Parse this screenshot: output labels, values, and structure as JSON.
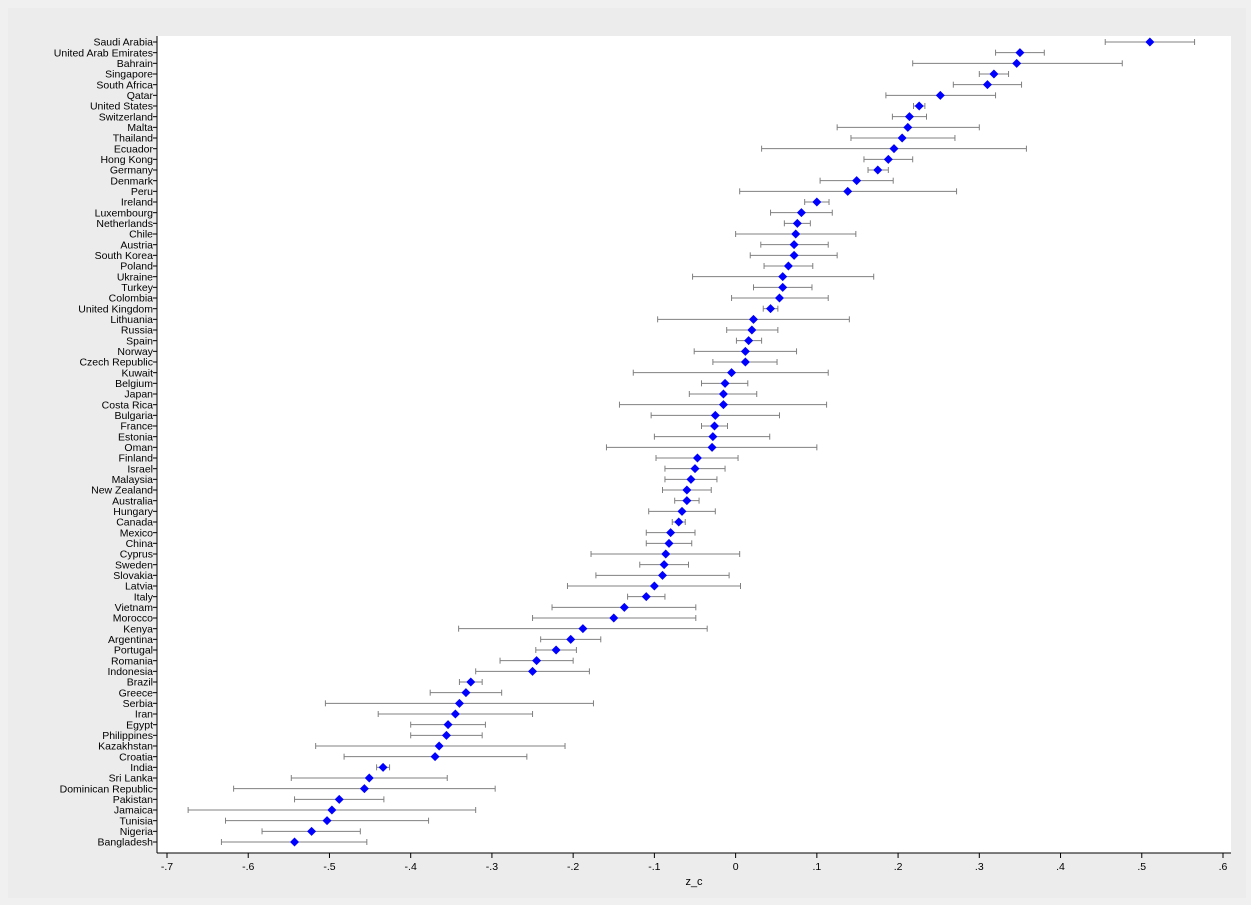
{
  "chart_data": {
    "type": "scatter",
    "subtype": "dot-plot-with-error-bars",
    "xlabel": "z_c",
    "ylabel": "",
    "xlim": [
      -0.7,
      0.6
    ],
    "x_ticks": [
      -0.7,
      -0.6,
      -0.5,
      -0.4,
      -0.3,
      -0.2,
      -0.1,
      0,
      0.1,
      0.2,
      0.3,
      0.4,
      0.5,
      0.6
    ],
    "x_tick_labels": [
      "-.7",
      "-.6",
      "-.5",
      "-.4",
      "-.3",
      "-.2",
      "-.1",
      "0",
      ".1",
      ".2",
      ".3",
      ".4",
      ".5",
      ".6"
    ],
    "grid": false,
    "marker_color": "#0000ff",
    "errorbar_color": "#808080",
    "points": [
      {
        "country": "Saudi Arabia",
        "estimate": 0.51,
        "lower": 0.455,
        "upper": 0.565
      },
      {
        "country": "United Arab Emirates",
        "estimate": 0.35,
        "lower": 0.32,
        "upper": 0.38
      },
      {
        "country": "Bahrain",
        "estimate": 0.346,
        "lower": 0.218,
        "upper": 0.476
      },
      {
        "country": "Singapore",
        "estimate": 0.318,
        "lower": 0.3,
        "upper": 0.336
      },
      {
        "country": "South Africa",
        "estimate": 0.31,
        "lower": 0.268,
        "upper": 0.352
      },
      {
        "country": "Qatar",
        "estimate": 0.252,
        "lower": 0.185,
        "upper": 0.32
      },
      {
        "country": "United States",
        "estimate": 0.226,
        "lower": 0.219,
        "upper": 0.233
      },
      {
        "country": "Switzerland",
        "estimate": 0.214,
        "lower": 0.193,
        "upper": 0.235
      },
      {
        "country": "Malta",
        "estimate": 0.212,
        "lower": 0.125,
        "upper": 0.3
      },
      {
        "country": "Thailand",
        "estimate": 0.205,
        "lower": 0.142,
        "upper": 0.27
      },
      {
        "country": "Ecuador",
        "estimate": 0.195,
        "lower": 0.032,
        "upper": 0.358
      },
      {
        "country": "Hong Kong",
        "estimate": 0.188,
        "lower": 0.158,
        "upper": 0.218
      },
      {
        "country": "Germany",
        "estimate": 0.175,
        "lower": 0.163,
        "upper": 0.188
      },
      {
        "country": "Denmark",
        "estimate": 0.149,
        "lower": 0.104,
        "upper": 0.194
      },
      {
        "country": "Peru",
        "estimate": 0.138,
        "lower": 0.005,
        "upper": 0.272
      },
      {
        "country": "Ireland",
        "estimate": 0.1,
        "lower": 0.085,
        "upper": 0.115
      },
      {
        "country": "Luxembourg",
        "estimate": 0.081,
        "lower": 0.043,
        "upper": 0.119
      },
      {
        "country": "Netherlands",
        "estimate": 0.076,
        "lower": 0.06,
        "upper": 0.092
      },
      {
        "country": "Chile",
        "estimate": 0.074,
        "lower": 0.0,
        "upper": 0.148
      },
      {
        "country": "Austria",
        "estimate": 0.072,
        "lower": 0.031,
        "upper": 0.114
      },
      {
        "country": "South Korea",
        "estimate": 0.072,
        "lower": 0.018,
        "upper": 0.125
      },
      {
        "country": "Poland",
        "estimate": 0.065,
        "lower": 0.035,
        "upper": 0.095
      },
      {
        "country": "Ukraine",
        "estimate": 0.058,
        "lower": -0.053,
        "upper": 0.17
      },
      {
        "country": "Turkey",
        "estimate": 0.058,
        "lower": 0.022,
        "upper": 0.094
      },
      {
        "country": "Colombia",
        "estimate": 0.054,
        "lower": -0.005,
        "upper": 0.114
      },
      {
        "country": "United Kingdom",
        "estimate": 0.043,
        "lower": 0.034,
        "upper": 0.052
      },
      {
        "country": "Lithuania",
        "estimate": 0.022,
        "lower": -0.096,
        "upper": 0.14
      },
      {
        "country": "Russia",
        "estimate": 0.02,
        "lower": -0.011,
        "upper": 0.052
      },
      {
        "country": "Spain",
        "estimate": 0.016,
        "lower": 0.001,
        "upper": 0.032
      },
      {
        "country": "Norway",
        "estimate": 0.012,
        "lower": -0.051,
        "upper": 0.075
      },
      {
        "country": "Czech Republic",
        "estimate": 0.012,
        "lower": -0.028,
        "upper": 0.051
      },
      {
        "country": "Kuwait",
        "estimate": -0.005,
        "lower": -0.126,
        "upper": 0.114
      },
      {
        "country": "Belgium",
        "estimate": -0.013,
        "lower": -0.042,
        "upper": 0.015
      },
      {
        "country": "Japan",
        "estimate": -0.015,
        "lower": -0.057,
        "upper": 0.026
      },
      {
        "country": "Costa Rica",
        "estimate": -0.015,
        "lower": -0.143,
        "upper": 0.112
      },
      {
        "country": "Bulgaria",
        "estimate": -0.025,
        "lower": -0.104,
        "upper": 0.054
      },
      {
        "country": "France",
        "estimate": -0.026,
        "lower": -0.042,
        "upper": -0.01
      },
      {
        "country": "Estonia",
        "estimate": -0.028,
        "lower": -0.1,
        "upper": 0.042
      },
      {
        "country": "Oman",
        "estimate": -0.029,
        "lower": -0.159,
        "upper": 0.1
      },
      {
        "country": "Finland",
        "estimate": -0.047,
        "lower": -0.098,
        "upper": 0.003
      },
      {
        "country": "Israel",
        "estimate": -0.05,
        "lower": -0.087,
        "upper": -0.013
      },
      {
        "country": "Malaysia",
        "estimate": -0.055,
        "lower": -0.087,
        "upper": -0.023
      },
      {
        "country": "New Zealand",
        "estimate": -0.06,
        "lower": -0.09,
        "upper": -0.03
      },
      {
        "country": "Australia",
        "estimate": -0.06,
        "lower": -0.075,
        "upper": -0.045
      },
      {
        "country": "Hungary",
        "estimate": -0.066,
        "lower": -0.107,
        "upper": -0.025
      },
      {
        "country": "Canada",
        "estimate": -0.07,
        "lower": -0.078,
        "upper": -0.062
      },
      {
        "country": "Mexico",
        "estimate": -0.08,
        "lower": -0.11,
        "upper": -0.05
      },
      {
        "country": "China",
        "estimate": -0.082,
        "lower": -0.11,
        "upper": -0.054
      },
      {
        "country": "Cyprus",
        "estimate": -0.086,
        "lower": -0.178,
        "upper": 0.005
      },
      {
        "country": "Sweden",
        "estimate": -0.088,
        "lower": -0.118,
        "upper": -0.058
      },
      {
        "country": "Slovakia",
        "estimate": -0.09,
        "lower": -0.172,
        "upper": -0.008
      },
      {
        "country": "Latvia",
        "estimate": -0.1,
        "lower": -0.207,
        "upper": 0.006
      },
      {
        "country": "Italy",
        "estimate": -0.11,
        "lower": -0.133,
        "upper": -0.087
      },
      {
        "country": "Vietnam",
        "estimate": -0.137,
        "lower": -0.226,
        "upper": -0.049
      },
      {
        "country": "Morocco",
        "estimate": -0.15,
        "lower": -0.25,
        "upper": -0.049
      },
      {
        "country": "Kenya",
        "estimate": -0.188,
        "lower": -0.341,
        "upper": -0.035
      },
      {
        "country": "Argentina",
        "estimate": -0.203,
        "lower": -0.24,
        "upper": -0.166
      },
      {
        "country": "Portugal",
        "estimate": -0.221,
        "lower": -0.246,
        "upper": -0.196
      },
      {
        "country": "Romania",
        "estimate": -0.245,
        "lower": -0.29,
        "upper": -0.2
      },
      {
        "country": "Indonesia",
        "estimate": -0.25,
        "lower": -0.32,
        "upper": -0.18
      },
      {
        "country": "Brazil",
        "estimate": -0.326,
        "lower": -0.34,
        "upper": -0.312
      },
      {
        "country": "Greece",
        "estimate": -0.332,
        "lower": -0.376,
        "upper": -0.288
      },
      {
        "country": "Serbia",
        "estimate": -0.34,
        "lower": -0.505,
        "upper": -0.175
      },
      {
        "country": "Iran",
        "estimate": -0.345,
        "lower": -0.44,
        "upper": -0.25
      },
      {
        "country": "Egypt",
        "estimate": -0.354,
        "lower": -0.4,
        "upper": -0.308
      },
      {
        "country": "Philippines",
        "estimate": -0.356,
        "lower": -0.4,
        "upper": -0.312
      },
      {
        "country": "Kazakhstan",
        "estimate": -0.365,
        "lower": -0.517,
        "upper": -0.21
      },
      {
        "country": "Croatia",
        "estimate": -0.37,
        "lower": -0.482,
        "upper": -0.257
      },
      {
        "country": "India",
        "estimate": -0.434,
        "lower": -0.442,
        "upper": -0.426
      },
      {
        "country": "Sri Lanka",
        "estimate": -0.451,
        "lower": -0.547,
        "upper": -0.355
      },
      {
        "country": "Dominican Republic",
        "estimate": -0.457,
        "lower": -0.618,
        "upper": -0.296
      },
      {
        "country": "Pakistan",
        "estimate": -0.488,
        "lower": -0.543,
        "upper": -0.433
      },
      {
        "country": "Jamaica",
        "estimate": -0.497,
        "lower": -0.674,
        "upper": -0.32
      },
      {
        "country": "Tunisia",
        "estimate": -0.503,
        "lower": -0.628,
        "upper": -0.378
      },
      {
        "country": "Nigeria",
        "estimate": -0.522,
        "lower": -0.583,
        "upper": -0.462
      },
      {
        "country": "Bangladesh",
        "estimate": -0.543,
        "lower": -0.633,
        "upper": -0.454
      }
    ]
  }
}
